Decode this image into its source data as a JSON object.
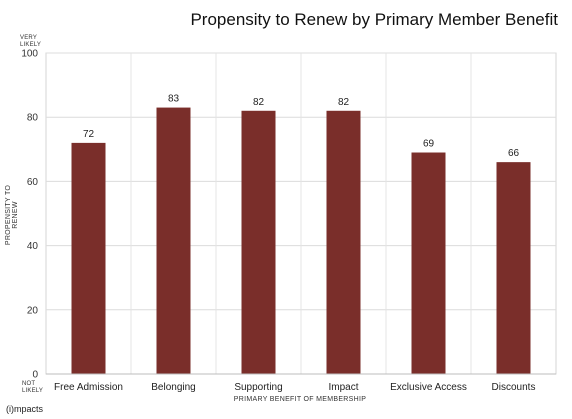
{
  "chart_data": {
    "type": "bar",
    "title": "Propensity to Renew by Primary Member Benefit",
    "xlabel": "PRIMARY BENEFIT OF MEMBERSHIP",
    "ylabel": "PROPENSITY TO RENEW",
    "categories": [
      "Free Admission",
      "Belonging",
      "Supporting",
      "Impact",
      "Exclusive Access",
      "Discounts"
    ],
    "values": [
      72,
      83,
      82,
      82,
      69,
      66
    ],
    "ylim": [
      0,
      100
    ],
    "yticks": [
      0,
      20,
      40,
      60,
      80,
      100
    ],
    "ytop_annotation": [
      "VERY",
      "LIKELY"
    ],
    "ybottom_annotation": [
      "NOT",
      "LIKELY"
    ],
    "grid": true,
    "bar_color": "#7a2e2a",
    "data_labels": true
  },
  "logo_text": "(i)mpacts"
}
